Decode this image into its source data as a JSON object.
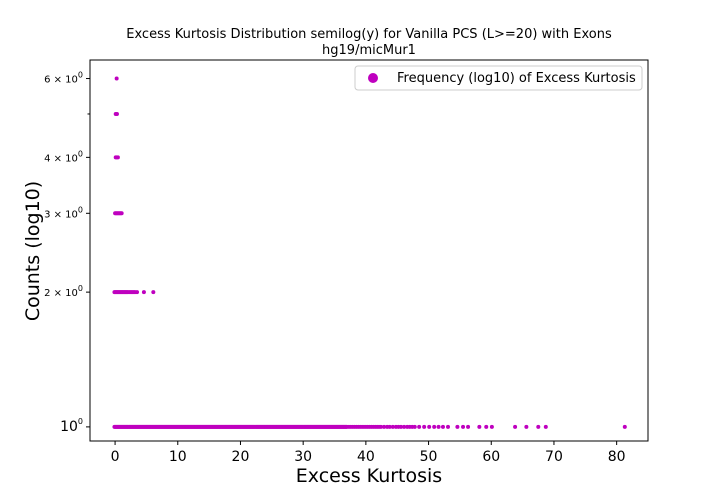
{
  "chart_data": {
    "type": "scatter",
    "title": "Excess Kurtosis Distribution semilog(y) for Vanilla PCS (L>=20) with Exons",
    "subtitle": "hg19/micMur1",
    "xlabel": "Excess Kurtosis",
    "ylabel": "Counts (log10)",
    "xlim": [
      -4,
      85
    ],
    "ylim": [
      0.93,
      6.6
    ],
    "yscale": "log",
    "grid": false,
    "legend_placement": "top-right",
    "x_ticks": [
      "0",
      "10",
      "20",
      "30",
      "40",
      "50",
      "60",
      "70",
      "80"
    ],
    "y_ticks": [
      {
        "value": 1,
        "base": "10",
        "exp": "0",
        "mantissa": ""
      },
      {
        "value": 2,
        "base": "10",
        "exp": "0",
        "mantissa": "2 × "
      },
      {
        "value": 3,
        "base": "10",
        "exp": "0",
        "mantissa": "3 × "
      },
      {
        "value": 4,
        "base": "10",
        "exp": "0",
        "mantissa": "4 × "
      },
      {
        "value": 6,
        "base": "10",
        "exp": "0",
        "mantissa": "6 × "
      }
    ],
    "y_minor_ticks": [
      5
    ],
    "series": [
      {
        "name": "Frequency (log10) of Excess Kurtosis",
        "color": "#bf00bf",
        "points": [
          {
            "y": 6,
            "x": [
              0.25
            ]
          },
          {
            "y": 5,
            "x": [
              0.1,
              0.3
            ]
          },
          {
            "y": 4,
            "x": [
              0.1,
              0.25,
              0.45
            ]
          },
          {
            "y": 3,
            "x": [
              0.0,
              0.15,
              0.3,
              0.45,
              0.6,
              0.75,
              0.9,
              1.05
            ]
          },
          {
            "y": 2,
            "x": [
              -0.1,
              0.05,
              0.2,
              0.35,
              0.5,
              0.65,
              0.8,
              0.95,
              1.1,
              1.25,
              1.4,
              1.55,
              1.7,
              1.85,
              2.0,
              2.2,
              2.4,
              2.6,
              2.8,
              3.0,
              3.2,
              3.5,
              4.6,
              6.1
            ]
          },
          {
            "y": 1,
            "x_dense_range": [
              -0.1,
              37.0
            ],
            "x_dense_step": 0.12,
            "x": [
              37.3,
              37.6,
              37.9,
              38.2,
              38.5,
              38.8,
              39.1,
              39.4,
              39.7,
              40.0,
              40.3,
              40.6,
              40.9,
              41.2,
              41.5,
              41.8,
              42.1,
              42.4,
              42.9,
              43.4,
              43.8,
              44.3,
              44.8,
              45.2,
              45.6,
              46.1,
              46.6,
              47.0,
              47.4,
              47.8,
              48.5,
              49.3,
              50.1,
              50.9,
              51.6,
              52.3,
              53.1,
              54.6,
              55.5,
              56.3,
              58.1,
              59.2,
              60.1,
              63.8,
              65.6,
              67.5,
              68.7,
              81.3
            ]
          }
        ]
      }
    ]
  }
}
